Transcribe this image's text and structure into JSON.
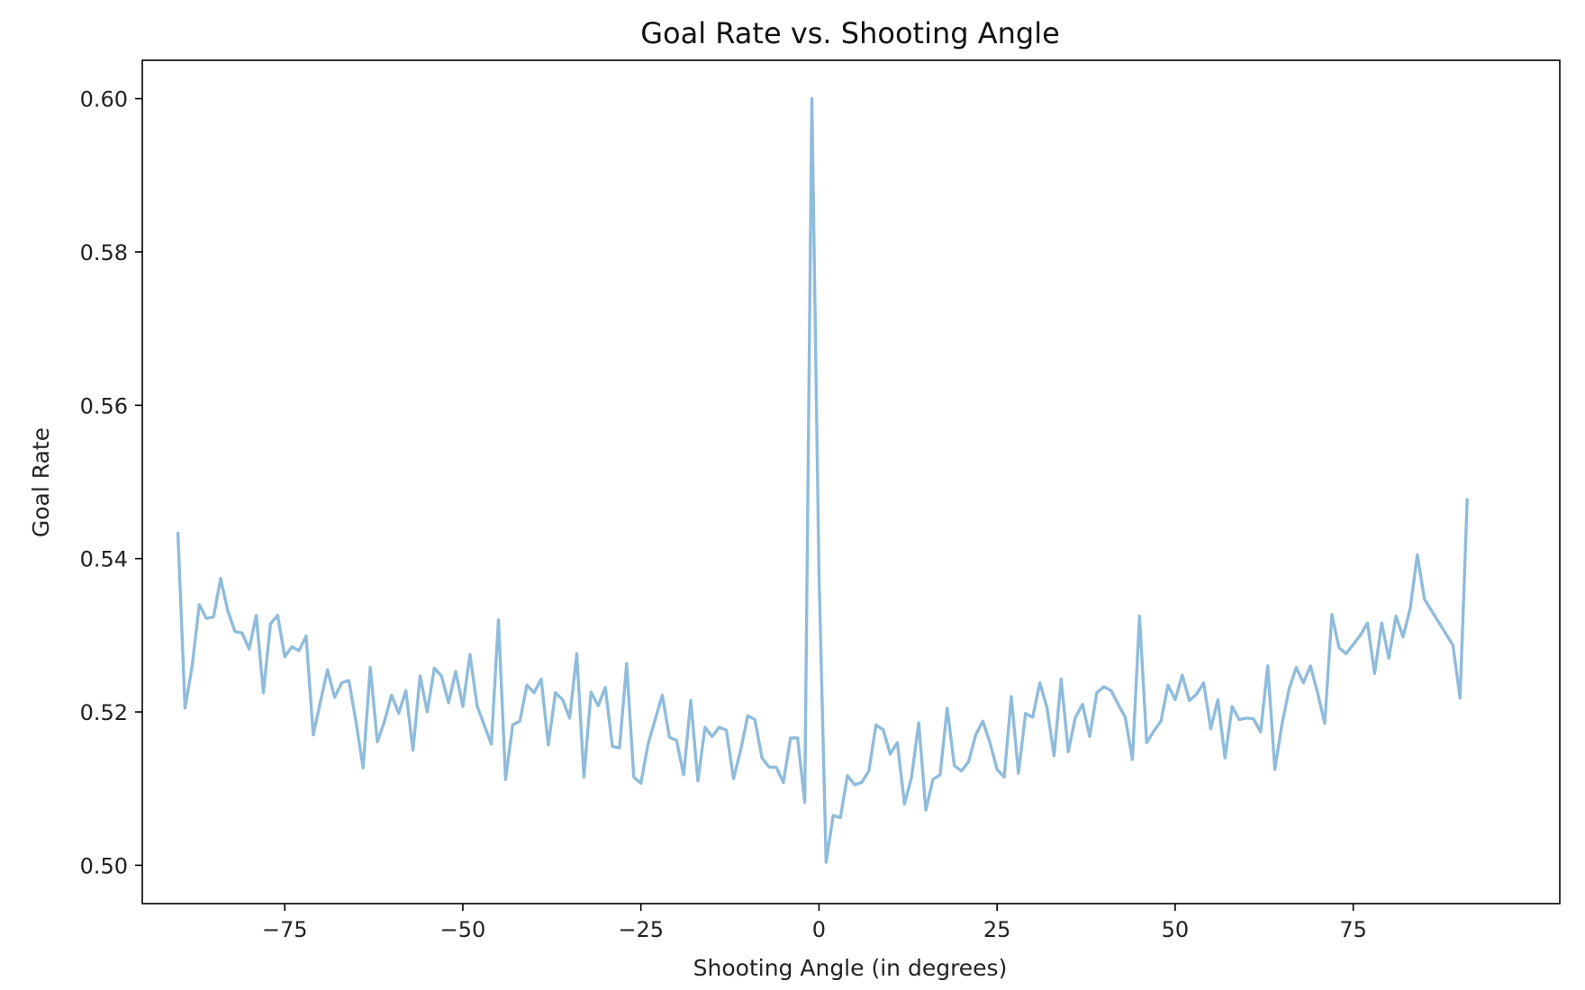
{
  "chart_data": {
    "type": "line",
    "title": "Goal Rate vs. Shooting Angle",
    "xlabel": "Shooting Angle (in degrees)",
    "ylabel": "Goal Rate",
    "xlim": [
      -95,
      104
    ],
    "ylim": [
      0.495,
      0.605
    ],
    "xticks": [
      -75,
      -50,
      -25,
      0,
      25,
      50,
      75
    ],
    "xtick_labels": [
      "−75",
      "−50",
      "−25",
      "0",
      "25",
      "50",
      "75"
    ],
    "yticks": [
      0.5,
      0.52,
      0.54,
      0.56,
      0.58,
      0.6
    ],
    "ytick_labels": [
      "0.50",
      "0.52",
      "0.54",
      "0.56",
      "0.58",
      "0.60"
    ],
    "grid": false,
    "legend": "none",
    "series": [
      {
        "color": "#8fbcdc",
        "points": [
          [
            -90,
            0.5433
          ],
          [
            -89,
            0.5205
          ],
          [
            -88,
            0.526
          ],
          [
            -87,
            0.534
          ],
          [
            -86,
            0.5322
          ],
          [
            -85,
            0.5324
          ],
          [
            -84,
            0.5374
          ],
          [
            -83,
            0.5332
          ],
          [
            -82,
            0.5305
          ],
          [
            -81,
            0.5303
          ],
          [
            -80,
            0.5282
          ],
          [
            -79,
            0.5326
          ],
          [
            -78,
            0.5225
          ],
          [
            -77,
            0.5315
          ],
          [
            -76,
            0.5326
          ],
          [
            -75,
            0.5272
          ],
          [
            -74,
            0.5285
          ],
          [
            -73,
            0.528
          ],
          [
            -72,
            0.5299
          ],
          [
            -71,
            0.517
          ],
          [
            -70,
            0.5213
          ],
          [
            -69,
            0.5255
          ],
          [
            -68,
            0.5219
          ],
          [
            -67,
            0.5238
          ],
          [
            -66,
            0.5241
          ],
          [
            -65,
            0.5187
          ],
          [
            -64,
            0.5127
          ],
          [
            -63,
            0.5258
          ],
          [
            -62,
            0.5161
          ],
          [
            -61,
            0.5188
          ],
          [
            -60,
            0.5222
          ],
          [
            -59,
            0.5198
          ],
          [
            -58,
            0.5228
          ],
          [
            -57,
            0.515
          ],
          [
            -56,
            0.5247
          ],
          [
            -55,
            0.52
          ],
          [
            -54,
            0.5257
          ],
          [
            -53,
            0.5247
          ],
          [
            -52,
            0.5212
          ],
          [
            -51,
            0.5253
          ],
          [
            -50,
            0.5207
          ],
          [
            -49,
            0.5275
          ],
          [
            -48,
            0.5208
          ],
          [
            -47,
            0.5183
          ],
          [
            -46,
            0.5158
          ],
          [
            -45,
            0.532
          ],
          [
            -44,
            0.5112
          ],
          [
            -43,
            0.5183
          ],
          [
            -42,
            0.5188
          ],
          [
            -41,
            0.5235
          ],
          [
            -40,
            0.5225
          ],
          [
            -39,
            0.5243
          ],
          [
            -38,
            0.5157
          ],
          [
            -37,
            0.5225
          ],
          [
            -36,
            0.5216
          ],
          [
            -35,
            0.5192
          ],
          [
            -34,
            0.5276
          ],
          [
            -33,
            0.5115
          ],
          [
            -32,
            0.5226
          ],
          [
            -31,
            0.5208
          ],
          [
            -30,
            0.5232
          ],
          [
            -29,
            0.5155
          ],
          [
            -28,
            0.5153
          ],
          [
            -27,
            0.5263
          ],
          [
            -26,
            0.5115
          ],
          [
            -25,
            0.5107
          ],
          [
            -24,
            0.5158
          ],
          [
            -23,
            0.519
          ],
          [
            -22,
            0.5222
          ],
          [
            -21,
            0.5167
          ],
          [
            -20,
            0.5163
          ],
          [
            -19,
            0.5118
          ],
          [
            -18,
            0.5215
          ],
          [
            -17,
            0.511
          ],
          [
            -16,
            0.518
          ],
          [
            -15,
            0.5168
          ],
          [
            -14,
            0.518
          ],
          [
            -13,
            0.5176
          ],
          [
            -12,
            0.5113
          ],
          [
            -11,
            0.515
          ],
          [
            -10,
            0.5195
          ],
          [
            -9,
            0.519
          ],
          [
            -8,
            0.514
          ],
          [
            -7,
            0.5128
          ],
          [
            -6,
            0.5128
          ],
          [
            -5,
            0.5108
          ],
          [
            -4,
            0.5166
          ],
          [
            -3,
            0.5166
          ],
          [
            -2,
            0.5082
          ],
          [
            -1,
            0.6
          ],
          [
            0,
            0.538
          ],
          [
            1,
            0.5004
          ],
          [
            2,
            0.5065
          ],
          [
            3,
            0.5062
          ],
          [
            4,
            0.5117
          ],
          [
            5,
            0.5105
          ],
          [
            6,
            0.5108
          ],
          [
            7,
            0.5123
          ],
          [
            8,
            0.5183
          ],
          [
            9,
            0.5177
          ],
          [
            10,
            0.5145
          ],
          [
            11,
            0.516
          ],
          [
            12,
            0.508
          ],
          [
            13,
            0.5115
          ],
          [
            14,
            0.5186
          ],
          [
            15,
            0.5072
          ],
          [
            16,
            0.5112
          ],
          [
            17,
            0.5118
          ],
          [
            18,
            0.5205
          ],
          [
            19,
            0.513
          ],
          [
            20,
            0.5123
          ],
          [
            21,
            0.5135
          ],
          [
            22,
            0.517
          ],
          [
            23,
            0.5188
          ],
          [
            24,
            0.516
          ],
          [
            25,
            0.5125
          ],
          [
            26,
            0.5115
          ],
          [
            27,
            0.522
          ],
          [
            28,
            0.512
          ],
          [
            29,
            0.5198
          ],
          [
            30,
            0.5193
          ],
          [
            31,
            0.5238
          ],
          [
            32,
            0.5206
          ],
          [
            33,
            0.5143
          ],
          [
            34,
            0.5243
          ],
          [
            35,
            0.5148
          ],
          [
            36,
            0.5193
          ],
          [
            37,
            0.521
          ],
          [
            38,
            0.5168
          ],
          [
            39,
            0.5225
          ],
          [
            40,
            0.5233
          ],
          [
            41,
            0.5228
          ],
          [
            42,
            0.521
          ],
          [
            43,
            0.5193
          ],
          [
            44,
            0.5138
          ],
          [
            45,
            0.5325
          ],
          [
            46,
            0.516
          ],
          [
            47,
            0.5175
          ],
          [
            48,
            0.5188
          ],
          [
            49,
            0.5235
          ],
          [
            50,
            0.5216
          ],
          [
            51,
            0.5248
          ],
          [
            52,
            0.5215
          ],
          [
            53,
            0.5223
          ],
          [
            54,
            0.5238
          ],
          [
            55,
            0.5178
          ],
          [
            56,
            0.5216
          ],
          [
            57,
            0.514
          ],
          [
            58,
            0.5207
          ],
          [
            59,
            0.519
          ],
          [
            60,
            0.5192
          ],
          [
            61,
            0.5191
          ],
          [
            62,
            0.5174
          ],
          [
            63,
            0.526
          ],
          [
            64,
            0.5125
          ],
          [
            65,
            0.5184
          ],
          [
            66,
            0.523
          ],
          [
            67,
            0.5258
          ],
          [
            68,
            0.5238
          ],
          [
            69,
            0.526
          ],
          [
            70,
            0.5225
          ],
          [
            71,
            0.5185
          ],
          [
            72,
            0.5327
          ],
          [
            73,
            0.5284
          ],
          [
            74,
            0.5276
          ],
          [
            75,
            0.5288
          ],
          [
            76,
            0.53
          ],
          [
            77,
            0.5316
          ],
          [
            78,
            0.525
          ],
          [
            79,
            0.5316
          ],
          [
            80,
            0.527
          ],
          [
            81,
            0.5325
          ],
          [
            82,
            0.5298
          ],
          [
            83,
            0.5335
          ],
          [
            84,
            0.5405
          ],
          [
            85,
            0.5347
          ],
          [
            86,
            0.5332
          ],
          [
            87,
            0.5317
          ],
          [
            88,
            0.5302
          ],
          [
            89,
            0.5287
          ],
          [
            90,
            0.5218
          ],
          [
            91,
            0.5477
          ]
        ]
      }
    ]
  }
}
